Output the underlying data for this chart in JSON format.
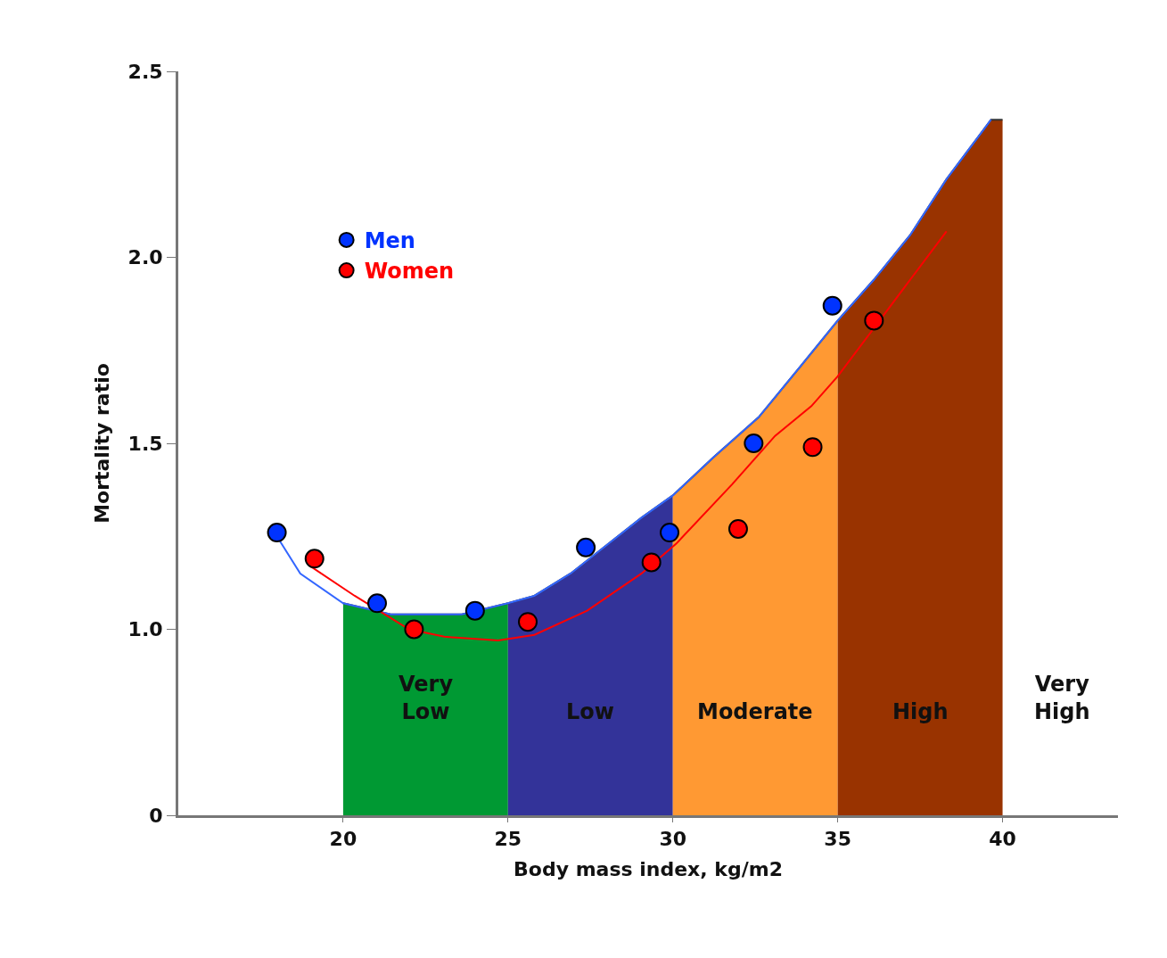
{
  "chart_data": {
    "type": "scatter",
    "xlabel": "Body mass index, kg/m2",
    "ylabel": "Mortality ratio",
    "xlim": [
      15,
      43.5
    ],
    "xticks": [
      20,
      25,
      30,
      35,
      40
    ],
    "ylim": [
      0.5,
      2.5
    ],
    "yticks": [
      {
        "value": 0.5,
        "label": "0"
      },
      {
        "value": 1.0,
        "label": "1.0"
      },
      {
        "value": 1.5,
        "label": "1.5"
      },
      {
        "value": 2.0,
        "label": "2.0"
      },
      {
        "value": 2.5,
        "label": "2.5"
      }
    ],
    "legend": "top left",
    "marker": "circle",
    "series": [
      {
        "type": "area",
        "marker": "none",
        "color": "#009933",
        "x": [
          20,
          20.5,
          21.44,
          23.6,
          25
        ],
        "values": [
          1.07,
          1.06,
          1.04,
          1.04,
          1.07
        ]
      },
      {
        "type": "area",
        "marker": "none",
        "color": "#333399",
        "x": [
          25,
          25.8,
          26.9,
          29.05,
          30
        ],
        "values": [
          1.07,
          1.09,
          1.15,
          1.3,
          1.36
        ]
      },
      {
        "type": "area",
        "marker": "none",
        "color": "#ff9933",
        "x": [
          30,
          31.2,
          32.6,
          33.9,
          35
        ],
        "values": [
          1.36,
          1.46,
          1.57,
          1.71,
          1.83
        ]
      },
      {
        "type": "area",
        "marker": "none",
        "color": "#993300",
        "x": [
          35,
          36.1,
          37.2,
          38.3,
          39.4,
          39.65,
          40
        ],
        "values": [
          1.83,
          1.94,
          2.06,
          2.21,
          2.34,
          2.37,
          2.37
        ]
      },
      {
        "type": "line",
        "marker": "none",
        "color": "#3366ff",
        "x": [
          17.99,
          18.7,
          20,
          21.44,
          23.6,
          25,
          25.8,
          26.9,
          29.05,
          30,
          31.2,
          32.6,
          33.9,
          35,
          36.1,
          37.2,
          38.3,
          39.4,
          39.65
        ],
        "values": [
          1.25,
          1.15,
          1.07,
          1.04,
          1.04,
          1.07,
          1.09,
          1.15,
          1.3,
          1.36,
          1.46,
          1.57,
          1.71,
          1.83,
          1.94,
          2.06,
          2.21,
          2.34,
          2.37
        ]
      },
      {
        "type": "line",
        "marker": "none",
        "color": "#ff0000",
        "x": [
          19.0,
          20.35,
          22.0,
          23.07,
          24.7,
          25.8,
          27.4,
          29.05,
          30.1,
          31.8,
          33.1,
          34.2,
          35.0,
          36.1,
          37.2,
          38.3
        ],
        "values": [
          1.17,
          1.09,
          1.0,
          0.98,
          0.97,
          0.985,
          1.05,
          1.15,
          1.23,
          1.39,
          1.52,
          1.6,
          1.68,
          1.81,
          1.94,
          2.07
        ]
      },
      {
        "name": "Men",
        "color": "#0033ff",
        "x": [
          17.99,
          21.03,
          24.0,
          27.36,
          29.9,
          32.45,
          34.84
        ],
        "values": [
          1.26,
          1.07,
          1.05,
          1.22,
          1.26,
          1.5,
          1.87
        ]
      },
      {
        "name": "Women",
        "color": "#ff0000",
        "x": [
          19.13,
          22.15,
          25.6,
          29.35,
          31.98,
          34.24,
          36.1
        ],
        "values": [
          1.19,
          1.0,
          1.02,
          1.18,
          1.27,
          1.49,
          1.83
        ]
      }
    ],
    "annotations": [
      "Very\nLow",
      "Low",
      "Moderate",
      "High",
      "Very\nHigh"
    ]
  }
}
